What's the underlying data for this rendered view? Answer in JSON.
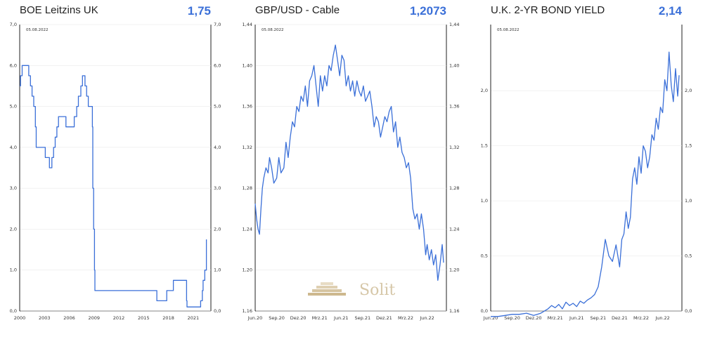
{
  "chart_data": [
    {
      "type": "line",
      "title": "BOE Leitzins UK",
      "current_value": "1,75",
      "as_of": "05.08.2022",
      "ylim": [
        0,
        7
      ],
      "y_ticks": [
        "0,0",
        "1,0",
        "2,0",
        "3,0",
        "4,0",
        "5,0",
        "6,0",
        "7,0"
      ],
      "x_ticks": [
        "2000",
        "2003",
        "2006",
        "2009",
        "2012",
        "2015",
        "2018",
        "2021"
      ],
      "xlim": [
        2000,
        2022.8
      ],
      "step": true,
      "series": [
        {
          "x": [
            2000.0,
            2000.1,
            2000.3,
            2001.1,
            2001.3,
            2001.5,
            2001.7,
            2001.9,
            2002.0,
            2003.1,
            2003.6,
            2003.9,
            2004.1,
            2004.3,
            2004.5,
            2004.7,
            2005.6,
            2006.6,
            2006.9,
            2007.1,
            2007.4,
            2007.6,
            2007.9,
            2008.1,
            2008.3,
            2008.8,
            2008.85,
            2008.95,
            2009.05,
            2009.1,
            2016.6,
            2017.8,
            2018.6,
            2020.2,
            2020.25,
            2021.9,
            2022.1,
            2022.2,
            2022.4,
            2022.6
          ],
          "y": [
            5.5,
            5.75,
            6.0,
            5.75,
            5.5,
            5.25,
            5.0,
            4.5,
            4.0,
            3.75,
            3.5,
            3.75,
            4.0,
            4.25,
            4.5,
            4.75,
            4.5,
            4.75,
            5.0,
            5.25,
            5.5,
            5.75,
            5.5,
            5.25,
            5.0,
            4.5,
            3.0,
            2.0,
            1.0,
            0.5,
            0.25,
            0.5,
            0.75,
            0.25,
            0.1,
            0.25,
            0.5,
            0.75,
            1.0,
            1.75
          ]
        }
      ]
    },
    {
      "type": "line",
      "title": "GBP/USD - Cable",
      "current_value": "1,2073",
      "as_of": "05.08.2022",
      "ylim": [
        1.16,
        1.44
      ],
      "y_ticks": [
        "1,16",
        "1,20",
        "1,24",
        "1,28",
        "1,32",
        "1,36",
        "1,40",
        "1,44"
      ],
      "x_ticks": [
        "Jun.20",
        "Sep.20",
        "Dez.20",
        "Mrz.21",
        "Jun.21",
        "Sep.21",
        "Dez.21",
        "Mrz.22",
        "Jun.22"
      ],
      "series": [
        {
          "x": [
            0,
            0.2,
            0.4,
            0.6,
            0.8,
            1.0,
            1.2,
            1.5,
            1.8,
            2.0,
            2.3,
            2.6,
            3.0,
            3.3,
            3.6,
            4.0,
            4.3,
            4.6,
            4.9,
            5.2,
            5.5,
            5.8,
            6.1,
            6.4,
            6.7,
            7.0,
            7.3,
            7.6,
            7.9,
            8.2,
            8.5,
            8.8,
            9.1,
            9.4,
            9.7,
            10.0,
            10.3,
            10.6,
            10.9,
            11.2,
            11.5,
            11.8,
            12.1,
            12.4,
            12.7,
            13.0,
            13.3,
            13.6,
            13.9,
            14.2,
            14.5,
            14.8,
            15.1,
            15.4,
            15.7,
            16.0,
            16.3,
            16.6,
            16.9,
            17.2,
            17.5,
            17.8,
            18.1,
            18.4,
            18.7,
            19.0,
            19.3,
            19.6,
            19.9,
            20.2,
            20.5,
            20.8,
            21.1,
            21.4,
            21.7,
            22.0,
            22.3,
            22.6,
            22.9,
            23.2,
            23.5,
            23.8,
            24.0,
            24.3,
            24.6,
            24.9,
            25.2,
            25.5,
            25.8,
            26.1,
            26.3
          ],
          "y": [
            1.265,
            1.25,
            1.24,
            1.235,
            1.26,
            1.28,
            1.29,
            1.3,
            1.295,
            1.31,
            1.3,
            1.285,
            1.29,
            1.31,
            1.295,
            1.3,
            1.325,
            1.31,
            1.33,
            1.345,
            1.34,
            1.36,
            1.355,
            1.37,
            1.365,
            1.38,
            1.36,
            1.385,
            1.39,
            1.4,
            1.38,
            1.36,
            1.39,
            1.375,
            1.39,
            1.38,
            1.4,
            1.395,
            1.41,
            1.42,
            1.405,
            1.39,
            1.41,
            1.405,
            1.38,
            1.39,
            1.375,
            1.385,
            1.37,
            1.385,
            1.375,
            1.37,
            1.38,
            1.365,
            1.37,
            1.375,
            1.36,
            1.34,
            1.35,
            1.345,
            1.33,
            1.34,
            1.35,
            1.345,
            1.355,
            1.36,
            1.335,
            1.345,
            1.32,
            1.33,
            1.315,
            1.31,
            1.3,
            1.305,
            1.29,
            1.26,
            1.25,
            1.255,
            1.24,
            1.255,
            1.24,
            1.215,
            1.225,
            1.21,
            1.22,
            1.205,
            1.215,
            1.19,
            1.205,
            1.225,
            1.2073
          ]
        }
      ]
    },
    {
      "type": "line",
      "title": "U.K. 2-YR BOND YIELD",
      "current_value": "2,14",
      "as_of": "05.08.2022",
      "ylim": [
        0,
        2.6
      ],
      "y_ticks": [
        "0,0",
        "0,5",
        "1,0",
        "1,5",
        "2,0"
      ],
      "y_tick_values": [
        0,
        0.5,
        1.0,
        1.5,
        2.0
      ],
      "x_ticks": [
        "Jun.20",
        "Sep.20",
        "Dez.20",
        "Mrz.21",
        "Jun.21",
        "Sep.21",
        "Dez.21",
        "Mrz.22",
        "Jun.22"
      ],
      "series": [
        {
          "x": [
            0,
            1,
            2,
            3,
            4,
            5,
            6,
            7,
            8,
            8.5,
            9,
            9.5,
            10,
            10.5,
            11,
            11.5,
            12,
            12.5,
            13,
            13.5,
            14,
            14.5,
            15,
            15.5,
            16,
            16.5,
            17,
            17.5,
            18,
            18.3,
            18.6,
            18.9,
            19.2,
            19.5,
            19.8,
            20.1,
            20.4,
            20.7,
            21.0,
            21.3,
            21.6,
            21.9,
            22.2,
            22.5,
            22.8,
            23.1,
            23.4,
            23.7,
            24.0,
            24.3,
            24.6,
            24.9,
            25.2,
            25.5,
            25.8,
            26.1,
            26.3
          ],
          "y": [
            -0.05,
            -0.05,
            -0.04,
            -0.03,
            -0.03,
            -0.02,
            -0.04,
            -0.02,
            0.02,
            0.05,
            0.03,
            0.06,
            0.02,
            0.08,
            0.05,
            0.07,
            0.04,
            0.09,
            0.07,
            0.1,
            0.12,
            0.15,
            0.22,
            0.4,
            0.65,
            0.5,
            0.45,
            0.6,
            0.4,
            0.65,
            0.7,
            0.9,
            0.75,
            0.85,
            1.2,
            1.3,
            1.15,
            1.4,
            1.25,
            1.5,
            1.45,
            1.3,
            1.4,
            1.6,
            1.55,
            1.75,
            1.65,
            1.85,
            1.8,
            2.1,
            2.0,
            2.35,
            2.05,
            1.9,
            2.2,
            1.95,
            2.14
          ]
        }
      ]
    }
  ],
  "watermark": {
    "text": "Solit"
  },
  "colors": {
    "line": "#3a6fd8",
    "value": "#3a6fd8",
    "axis": "#222222",
    "grid": "#e6e6e6"
  }
}
